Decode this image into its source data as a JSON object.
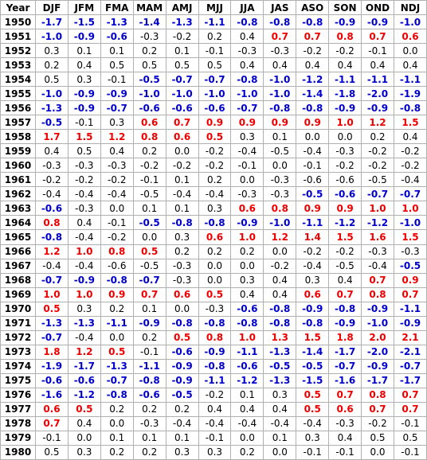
{
  "table": {
    "header": [
      "Year",
      "DJF",
      "JFM",
      "FMA",
      "MAM",
      "AMJ",
      "MJJ",
      "JJA",
      "JAS",
      "ASO",
      "SON",
      "OND",
      "NDJ"
    ],
    "colors": {
      "b": "#0000cc",
      "r": "#ee0000",
      "k": "#000000"
    },
    "rows": [
      [
        "1950",
        "-1.7",
        "-1.5",
        "-1.3",
        "-1.4",
        "-1.3",
        "-1.1",
        "-0.8",
        "-0.8",
        "-0.8",
        "-0.9",
        "-0.9",
        "-1.0"
      ],
      [
        "1951",
        "-1.0",
        "-0.9",
        "-0.6",
        "-0.3",
        "-0.2",
        "0.2",
        "0.4",
        "0.7",
        "0.7",
        "0.8",
        "0.7",
        "0.6"
      ],
      [
        "1952",
        "0.3",
        "0.1",
        "0.1",
        "0.2",
        "0.1",
        "-0.1",
        "-0.3",
        "-0.3",
        "-0.2",
        "-0.2",
        "-0.1",
        "0.0"
      ],
      [
        "1953",
        "0.2",
        "0.4",
        "0.5",
        "0.5",
        "0.5",
        "0.5",
        "0.4",
        "0.4",
        "0.4",
        "0.4",
        "0.4",
        "0.4"
      ],
      [
        "1954",
        "0.5",
        "0.3",
        "-0.1",
        "-0.5",
        "-0.7",
        "-0.7",
        "-0.8",
        "-1.0",
        "-1.2",
        "-1.1",
        "-1.1",
        "-1.1"
      ],
      [
        "1955",
        "-1.0",
        "-0.9",
        "-0.9",
        "-1.0",
        "-1.0",
        "-1.0",
        "-1.0",
        "-1.0",
        "-1.4",
        "-1.8",
        "-2.0",
        "-1.9"
      ],
      [
        "1956",
        "-1.3",
        "-0.9",
        "-0.7",
        "-0.6",
        "-0.6",
        "-0.6",
        "-0.7",
        "-0.8",
        "-0.8",
        "-0.9",
        "-0.9",
        "-0.8"
      ],
      [
        "1957",
        "-0.5",
        "-0.1",
        "0.3",
        "0.6",
        "0.7",
        "0.9",
        "0.9",
        "0.9",
        "0.9",
        "1.0",
        "1.2",
        "1.5"
      ],
      [
        "1958",
        "1.7",
        "1.5",
        "1.2",
        "0.8",
        "0.6",
        "0.5",
        "0.3",
        "0.1",
        "0.0",
        "0.0",
        "0.2",
        "0.4"
      ],
      [
        "1959",
        "0.4",
        "0.5",
        "0.4",
        "0.2",
        "0.0",
        "-0.2",
        "-0.4",
        "-0.5",
        "-0.4",
        "-0.3",
        "-0.2",
        "-0.2"
      ],
      [
        "1960",
        "-0.3",
        "-0.3",
        "-0.3",
        "-0.2",
        "-0.2",
        "-0.2",
        "-0.1",
        "0.0",
        "-0.1",
        "-0.2",
        "-0.2",
        "-0.2"
      ],
      [
        "1961",
        "-0.2",
        "-0.2",
        "-0.2",
        "-0.1",
        "0.1",
        "0.2",
        "0.0",
        "-0.3",
        "-0.6",
        "-0.6",
        "-0.5",
        "-0.4"
      ],
      [
        "1962",
        "-0.4",
        "-0.4",
        "-0.4",
        "-0.5",
        "-0.4",
        "-0.4",
        "-0.3",
        "-0.3",
        "-0.5",
        "-0.6",
        "-0.7",
        "-0.7"
      ],
      [
        "1963",
        "-0.6",
        "-0.3",
        "0.0",
        "0.1",
        "0.1",
        "0.3",
        "0.6",
        "0.8",
        "0.9",
        "0.9",
        "1.0",
        "1.0"
      ],
      [
        "1964",
        "0.8",
        "0.4",
        "-0.1",
        "-0.5",
        "-0.8",
        "-0.8",
        "-0.9",
        "-1.0",
        "-1.1",
        "-1.2",
        "-1.2",
        "-1.0"
      ],
      [
        "1965",
        "-0.8",
        "-0.4",
        "-0.2",
        "0.0",
        "0.3",
        "0.6",
        "1.0",
        "1.2",
        "1.4",
        "1.5",
        "1.6",
        "1.5"
      ],
      [
        "1966",
        "1.2",
        "1.0",
        "0.8",
        "0.5",
        "0.2",
        "0.2",
        "0.2",
        "0.0",
        "-0.2",
        "-0.2",
        "-0.3",
        "-0.3"
      ],
      [
        "1967",
        "-0.4",
        "-0.4",
        "-0.6",
        "-0.5",
        "-0.3",
        "0.0",
        "0.0",
        "-0.2",
        "-0.4",
        "-0.5",
        "-0.4",
        "-0.5"
      ],
      [
        "1968",
        "-0.7",
        "-0.9",
        "-0.8",
        "-0.7",
        "-0.3",
        "0.0",
        "0.3",
        "0.4",
        "0.3",
        "0.4",
        "0.7",
        "0.9"
      ],
      [
        "1969",
        "1.0",
        "1.0",
        "0.9",
        "0.7",
        "0.6",
        "0.5",
        "0.4",
        "0.4",
        "0.6",
        "0.7",
        "0.8",
        "0.7"
      ],
      [
        "1970",
        "0.5",
        "0.3",
        "0.2",
        "0.1",
        "0.0",
        "-0.3",
        "-0.6",
        "-0.8",
        "-0.9",
        "-0.8",
        "-0.9",
        "-1.1"
      ],
      [
        "1971",
        "-1.3",
        "-1.3",
        "-1.1",
        "-0.9",
        "-0.8",
        "-0.8",
        "-0.8",
        "-0.8",
        "-0.8",
        "-0.9",
        "-1.0",
        "-0.9"
      ],
      [
        "1972",
        "-0.7",
        "-0.4",
        "0.0",
        "0.2",
        "0.5",
        "0.8",
        "1.0",
        "1.3",
        "1.5",
        "1.8",
        "2.0",
        "2.1"
      ],
      [
        "1973",
        "1.8",
        "1.2",
        "0.5",
        "-0.1",
        "-0.6",
        "-0.9",
        "-1.1",
        "-1.3",
        "-1.4",
        "-1.7",
        "-2.0",
        "-2.1"
      ],
      [
        "1974",
        "-1.9",
        "-1.7",
        "-1.3",
        "-1.1",
        "-0.9",
        "-0.8",
        "-0.6",
        "-0.5",
        "-0.5",
        "-0.7",
        "-0.9",
        "-0.7"
      ],
      [
        "1975",
        "-0.6",
        "-0.6",
        "-0.7",
        "-0.8",
        "-0.9",
        "-1.1",
        "-1.2",
        "-1.3",
        "-1.5",
        "-1.6",
        "-1.7",
        "-1.7"
      ],
      [
        "1976",
        "-1.6",
        "-1.2",
        "-0.8",
        "-0.6",
        "-0.5",
        "-0.2",
        "0.1",
        "0.3",
        "0.5",
        "0.7",
        "0.8",
        "0.7"
      ],
      [
        "1977",
        "0.6",
        "0.5",
        "0.2",
        "0.2",
        "0.2",
        "0.4",
        "0.4",
        "0.4",
        "0.5",
        "0.6",
        "0.7",
        "0.7"
      ],
      [
        "1978",
        "0.7",
        "0.4",
        "0.0",
        "-0.3",
        "-0.4",
        "-0.4",
        "-0.4",
        "-0.4",
        "-0.4",
        "-0.3",
        "-0.2",
        "-0.1"
      ],
      [
        "1979",
        "-0.1",
        "0.0",
        "0.1",
        "0.1",
        "0.1",
        "-0.1",
        "0.0",
        "0.1",
        "0.3",
        "0.4",
        "0.5",
        "0.5"
      ],
      [
        "1980",
        "0.5",
        "0.3",
        "0.2",
        "0.2",
        "0.3",
        "0.3",
        "0.2",
        "0.0",
        "-0.1",
        "-0.1",
        "0.0",
        "-0.1"
      ]
    ],
    "styles": [
      "bbbbbbbbbbbb",
      "bbbkkkkrrrrr",
      "kkkkkkkkkkkk",
      "kkkkkkkkkkkk",
      "kkkbbbbbbbbb",
      "bbbbbbbbbbbb",
      "bbbbbbbbbbbb",
      "bkkrrrrrrrrr",
      "rrrrrrkkkkkk",
      "kkkkkkkkkkkk",
      "kkkkkkkkkkkk",
      "kkkkkkkkkkkk",
      "kkkkkkkkbbbb",
      "bkkkkkrrrrrr",
      "rkkbbbbbbbbb",
      "bkkkkrrrrrrr",
      "rrrrkkkkkkkk",
      "kkkkkkkkkkkb",
      "bbbbkkkkkkrr",
      "rrrrrrkkrrrr",
      "rkkkkkbbbbbb",
      "bbbbbbbbbbbb",
      "bkkkrrrrrrrr",
      "rrrkbbbbbbbb",
      "bbbbbbbbbbbb",
      "bbbbbbbbbbbb",
      "bbbbbkkkrrrr",
      "rrkkkkkkrrrr",
      "rkkkkkkkkkkk",
      "kkkkkkkkkkkk",
      "kkkkkkkkkkkk"
    ]
  }
}
